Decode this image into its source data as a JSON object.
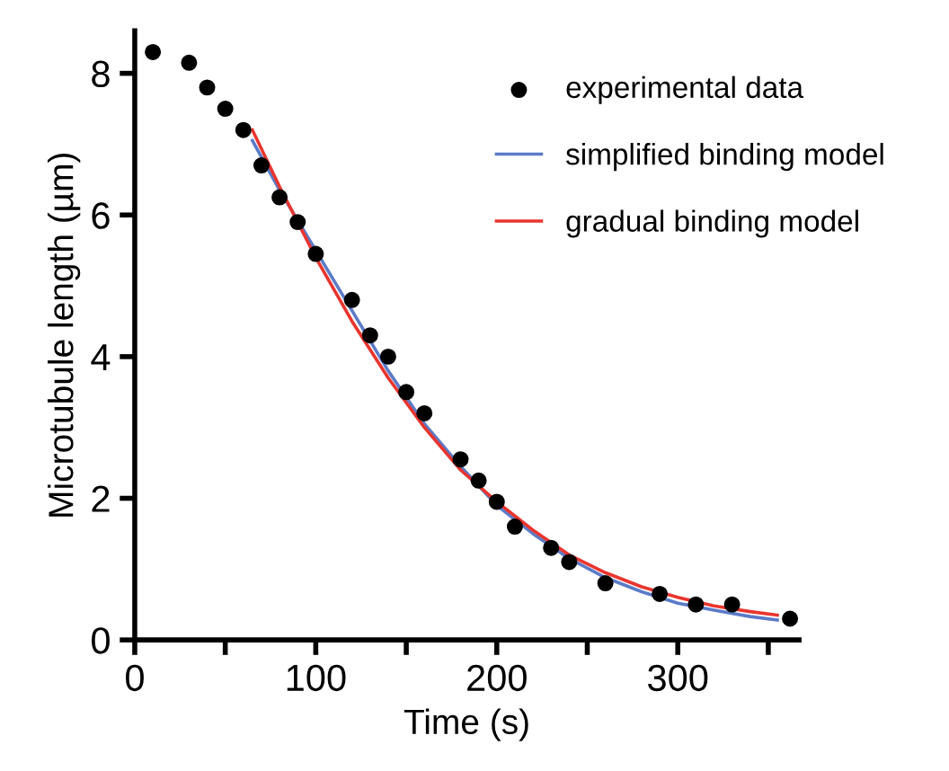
{
  "chart_data": {
    "type": "scatter",
    "xlabel": "Time (s)",
    "ylabel": "Microtubule length (µm)",
    "xlim": [
      0,
      367
    ],
    "ylim": [
      0,
      8.6
    ],
    "xticks": [
      0,
      {
        "value": 50,
        "label": null
      },
      100,
      {
        "value": 150,
        "label": null
      },
      200,
      {
        "value": 250,
        "label": null
      },
      300,
      {
        "value": 350,
        "label": null
      }
    ],
    "yticks": [
      0,
      2,
      4,
      6,
      8
    ],
    "grid": false,
    "legend": "top right",
    "series": [
      {
        "name": "experimental data",
        "marker": "circle",
        "color": "#000000",
        "x": [
          10,
          30,
          40,
          50,
          60,
          70,
          80,
          90,
          100,
          120,
          130,
          140,
          150,
          160,
          180,
          190,
          200,
          210,
          230,
          240,
          260,
          290,
          310,
          330,
          362
        ],
        "values": [
          8.3,
          8.15,
          7.8,
          7.5,
          7.2,
          6.7,
          6.25,
          5.9,
          5.45,
          4.8,
          4.3,
          4.0,
          3.5,
          3.2,
          2.55,
          2.25,
          1.95,
          1.6,
          1.3,
          1.1,
          0.8,
          0.65,
          0.5,
          0.5,
          0.3
        ]
      },
      {
        "name": "simplified binding model",
        "type": "line",
        "line_style": "solid",
        "color": "#5b7bc8",
        "x": [
          65,
          80,
          100,
          120,
          140,
          160,
          180,
          200,
          220,
          240,
          260,
          280,
          300,
          320,
          340,
          355
        ],
        "values": [
          7.05,
          6.35,
          5.5,
          4.65,
          3.8,
          3.05,
          2.45,
          1.9,
          1.5,
          1.15,
          0.88,
          0.68,
          0.52,
          0.42,
          0.33,
          0.28
        ]
      },
      {
        "name": "gradual binding model",
        "type": "line",
        "line_style": "solid",
        "color": "#e8352e",
        "x": [
          65,
          80,
          100,
          120,
          140,
          160,
          180,
          200,
          220,
          240,
          260,
          280,
          300,
          320,
          340,
          355
        ],
        "values": [
          7.2,
          6.4,
          5.4,
          4.5,
          3.7,
          3.0,
          2.4,
          1.95,
          1.55,
          1.2,
          0.95,
          0.75,
          0.6,
          0.48,
          0.4,
          0.35
        ]
      }
    ]
  }
}
